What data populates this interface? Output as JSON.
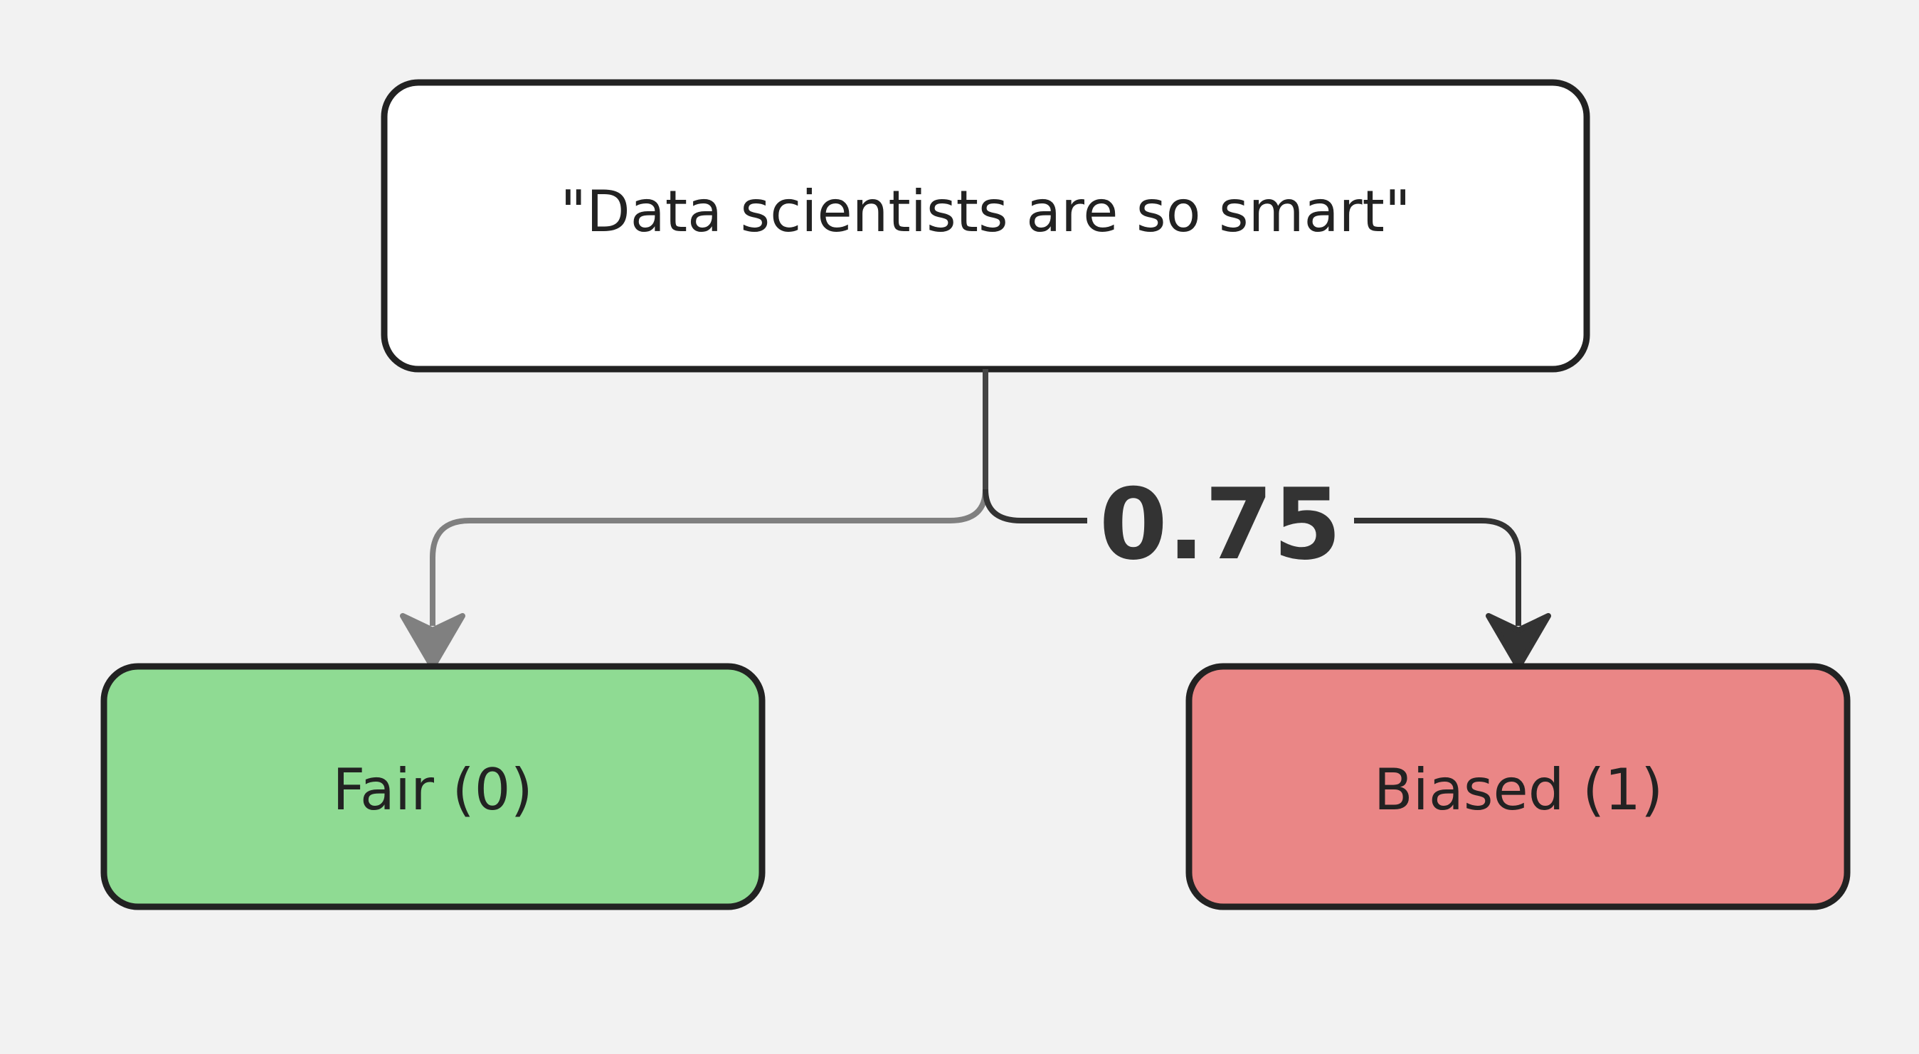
{
  "diagram": {
    "source_node": {
      "label": "\"Data scientists are so smart\"",
      "fill": "#ffffff"
    },
    "edge_label": "0.75",
    "targets": {
      "fair": {
        "label": "Fair (0)",
        "fill": "#8fdb93",
        "edge_color": "#808080"
      },
      "biased": {
        "label": "Biased (1)",
        "fill": "#ea8686",
        "edge_color": "#333333"
      }
    },
    "colors": {
      "background": "#f2f2f2",
      "node_border": "#222222",
      "trunk": "#444444"
    }
  }
}
